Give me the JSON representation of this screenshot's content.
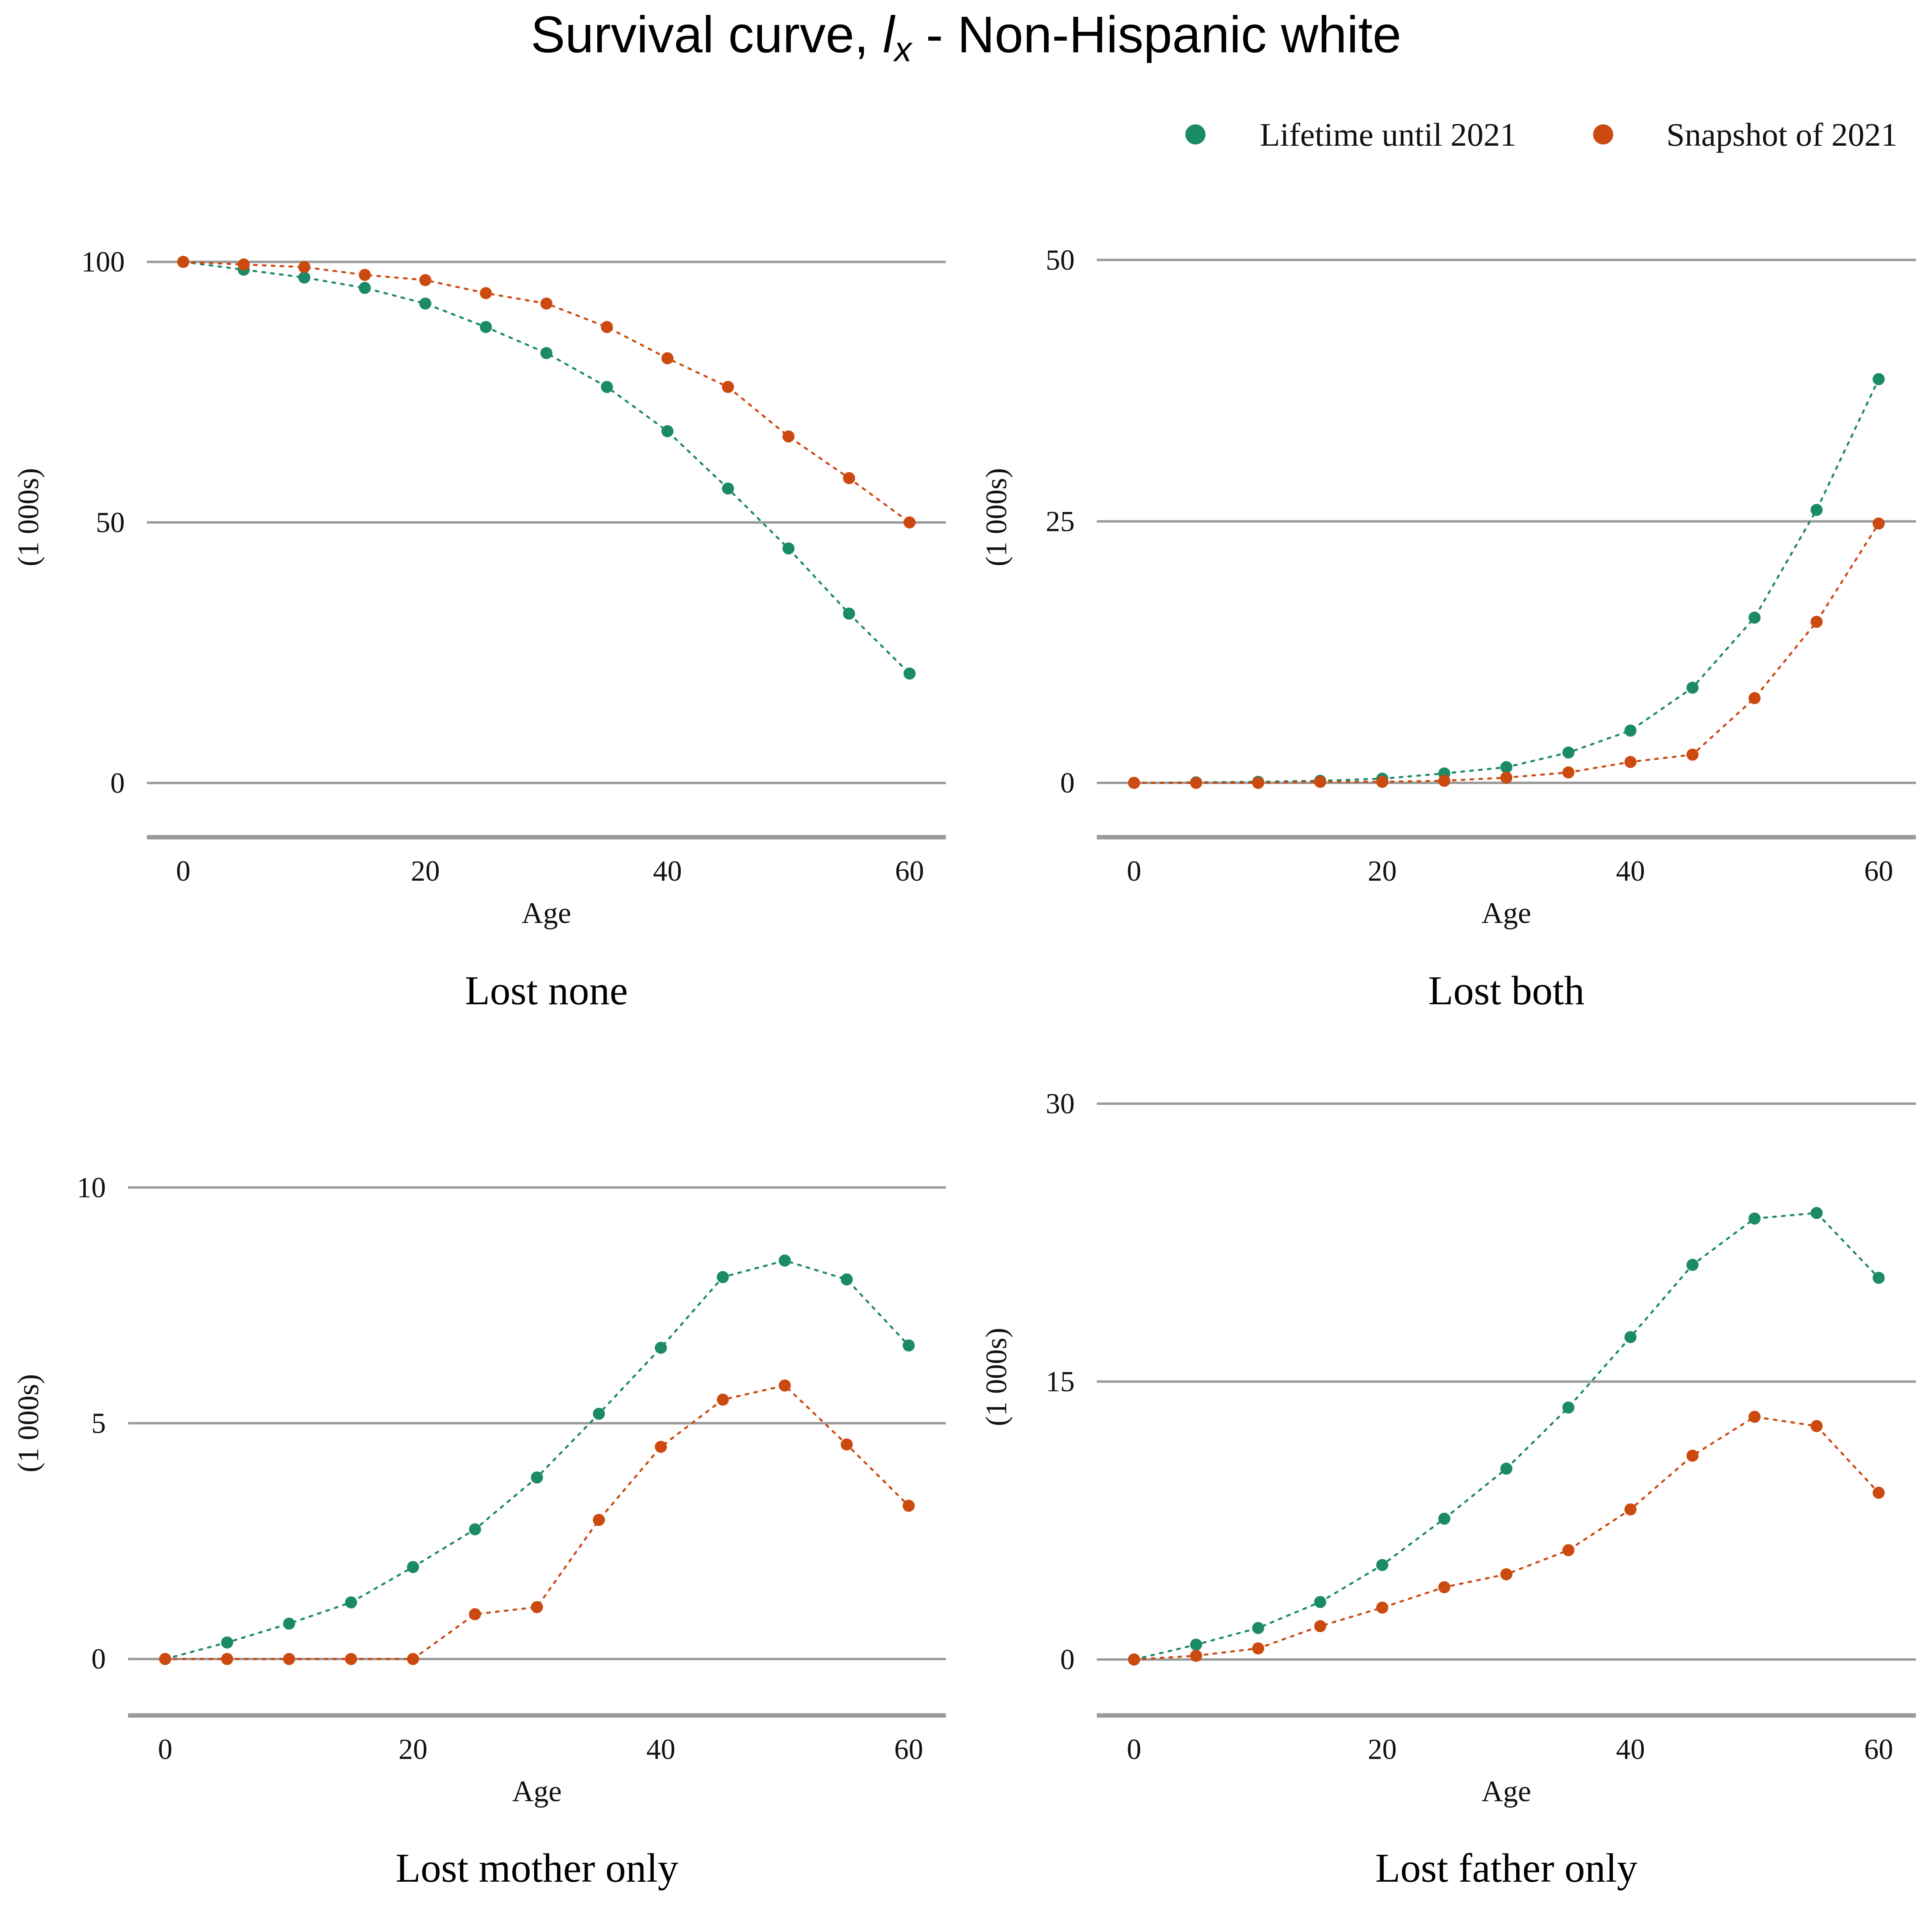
{
  "figure": {
    "title_prefix": "Survival curve, ",
    "title_symbol": "l",
    "title_subscript": "x",
    "title_suffix": " - Non-Hispanic white"
  },
  "legend": {
    "placement": "top-right",
    "entries": [
      {
        "label": "Lifetime until 2021",
        "color": "#1b8a66"
      },
      {
        "label": "Snapshot of 2021",
        "color": "#cc4a10"
      }
    ]
  },
  "chart_data": [
    {
      "type": "scatter",
      "title": "Lost none",
      "xlabel": "Age",
      "ylabel": "(1 000s)",
      "xlim": [
        -3,
        63
      ],
      "ylim": [
        -5,
        107
      ],
      "xticks": [
        0,
        20,
        40,
        60
      ],
      "yticks": [
        0,
        50,
        100
      ],
      "grid": true,
      "x": [
        0,
        5,
        10,
        15,
        20,
        25,
        30,
        35,
        40,
        45,
        50,
        55,
        60
      ],
      "series": [
        {
          "name": "Lifetime until 2021",
          "color": "#1b8a66",
          "values": [
            100,
            98.5,
            97,
            95,
            92,
            87.5,
            82.5,
            76,
            67.5,
            56.5,
            45,
            32.5,
            21
          ]
        },
        {
          "name": "Snapshot of 2021",
          "color": "#cc4a10",
          "values": [
            100,
            99.5,
            99,
            97.5,
            96.5,
            94,
            92,
            87.5,
            81.5,
            76,
            66.5,
            58.5,
            50
          ]
        }
      ]
    },
    {
      "type": "scatter",
      "title": "Lost both",
      "xlabel": "Age",
      "ylabel": "(1 000s)",
      "xlim": [
        -3,
        63
      ],
      "ylim": [
        -2.5,
        53.3
      ],
      "xticks": [
        0,
        20,
        40,
        60
      ],
      "yticks": [
        0,
        25,
        50
      ],
      "grid": true,
      "x": [
        0,
        5,
        10,
        15,
        20,
        25,
        30,
        35,
        40,
        45,
        50,
        55,
        60
      ],
      "series": [
        {
          "name": "Lifetime until 2021",
          "color": "#1b8a66",
          "values": [
            0,
            0.05,
            0.1,
            0.2,
            0.4,
            0.9,
            1.5,
            2.9,
            5.0,
            9.1,
            15.8,
            26.1,
            38.6
          ]
        },
        {
          "name": "Snapshot of 2021",
          "color": "#cc4a10",
          "values": [
            0,
            0,
            0,
            0.1,
            0.1,
            0.2,
            0.5,
            1.0,
            2.0,
            2.7,
            8.1,
            15.4,
            24.8
          ]
        }
      ]
    },
    {
      "type": "scatter",
      "title": "Lost mother only",
      "xlabel": "Age",
      "ylabel": "(1 000s)",
      "xlim": [
        -3,
        63
      ],
      "ylim": [
        -0.6,
        10.6
      ],
      "xticks": [
        0,
        20,
        40,
        60
      ],
      "yticks": [
        0,
        5,
        10
      ],
      "grid": true,
      "x": [
        0,
        5,
        10,
        15,
        20,
        25,
        30,
        35,
        40,
        45,
        50,
        55,
        60
      ],
      "series": [
        {
          "name": "Lifetime until 2021",
          "color": "#1b8a66",
          "values": [
            0,
            0.35,
            0.75,
            1.2,
            1.95,
            2.75,
            3.85,
            5.2,
            6.6,
            8.1,
            8.45,
            8.05,
            6.65
          ]
        },
        {
          "name": "Snapshot of 2021",
          "color": "#cc4a10",
          "values": [
            0,
            0,
            0,
            0,
            0,
            0.95,
            1.1,
            2.95,
            4.5,
            5.5,
            5.8,
            4.55,
            3.25
          ]
        }
      ]
    },
    {
      "type": "scatter",
      "title": "Lost father only",
      "xlabel": "Age",
      "ylabel": "(1 000s)",
      "xlim": [
        -3,
        63
      ],
      "ylim": [
        -1.5,
        32
      ],
      "xticks": [
        0,
        20,
        40,
        60
      ],
      "yticks": [
        0,
        15,
        30
      ],
      "grid": true,
      "x": [
        0,
        5,
        10,
        15,
        20,
        25,
        30,
        35,
        40,
        45,
        50,
        55,
        60
      ],
      "series": [
        {
          "name": "Lifetime until 2021",
          "color": "#1b8a66",
          "values": [
            0,
            0.8,
            1.7,
            3.1,
            5.1,
            7.6,
            10.3,
            13.6,
            17.4,
            21.3,
            23.8,
            24.1,
            20.6
          ]
        },
        {
          "name": "Snapshot of 2021",
          "color": "#cc4a10",
          "values": [
            0,
            0.2,
            0.6,
            1.8,
            2.8,
            3.9,
            4.6,
            5.9,
            8.1,
            11.0,
            13.1,
            12.6,
            9.0
          ]
        }
      ]
    }
  ]
}
